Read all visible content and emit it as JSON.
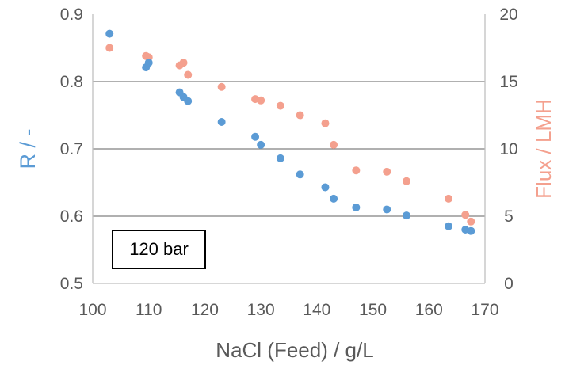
{
  "chart_data": {
    "type": "scatter",
    "title": "",
    "xlabel": "NaCl (Feed) / g/L",
    "ylabel": "R / -",
    "y2label": "Flux / LMH",
    "xlim": [
      100,
      170
    ],
    "ylim": [
      0.5,
      0.9
    ],
    "y2lim": [
      0,
      20
    ],
    "x_ticks": [
      "100",
      "110",
      "120",
      "130",
      "140",
      "150",
      "160",
      "170"
    ],
    "y_ticks": [
      "0.5",
      "0.6",
      "0.7",
      "0.8",
      "0.9"
    ],
    "y2_ticks": [
      "0",
      "5",
      "10",
      "15",
      "20"
    ],
    "grid": true,
    "legend": "none",
    "annotation": "120 bar",
    "colors": {
      "R": "#5b9bd5",
      "Flux": "#f4a08e",
      "axis": "#bfbfbf",
      "grid": "#808080",
      "tick_text": "#595959"
    },
    "series": [
      {
        "axis": "left",
        "points": [
          [
            103,
            0.871
          ],
          [
            109.5,
            0.821
          ],
          [
            110,
            0.828
          ],
          [
            115.5,
            0.784
          ],
          [
            116.2,
            0.777
          ],
          [
            117,
            0.771
          ],
          [
            123,
            0.74
          ],
          [
            129,
            0.718
          ],
          [
            130,
            0.706
          ],
          [
            133.5,
            0.686
          ],
          [
            137,
            0.662
          ],
          [
            141.5,
            0.643
          ],
          [
            143,
            0.626
          ],
          [
            147,
            0.613
          ],
          [
            152.5,
            0.61
          ],
          [
            156,
            0.601
          ],
          [
            163.5,
            0.585
          ],
          [
            166.5,
            0.58
          ],
          [
            167.5,
            0.578
          ]
        ]
      },
      {
        "axis": "right",
        "points": [
          [
            103,
            17.5
          ],
          [
            109.5,
            16.9
          ],
          [
            110,
            16.8
          ],
          [
            115.5,
            16.2
          ],
          [
            116.2,
            16.4
          ],
          [
            117,
            15.5
          ],
          [
            123,
            14.6
          ],
          [
            129,
            13.7
          ],
          [
            130,
            13.6
          ],
          [
            133.5,
            13.2
          ],
          [
            137,
            12.5
          ],
          [
            141.5,
            11.9
          ],
          [
            143,
            10.3
          ],
          [
            147,
            8.4
          ],
          [
            152.5,
            8.3
          ],
          [
            156,
            7.6
          ],
          [
            163.5,
            6.3
          ],
          [
            166.5,
            5.1
          ],
          [
            167.5,
            4.6
          ]
        ]
      }
    ]
  }
}
